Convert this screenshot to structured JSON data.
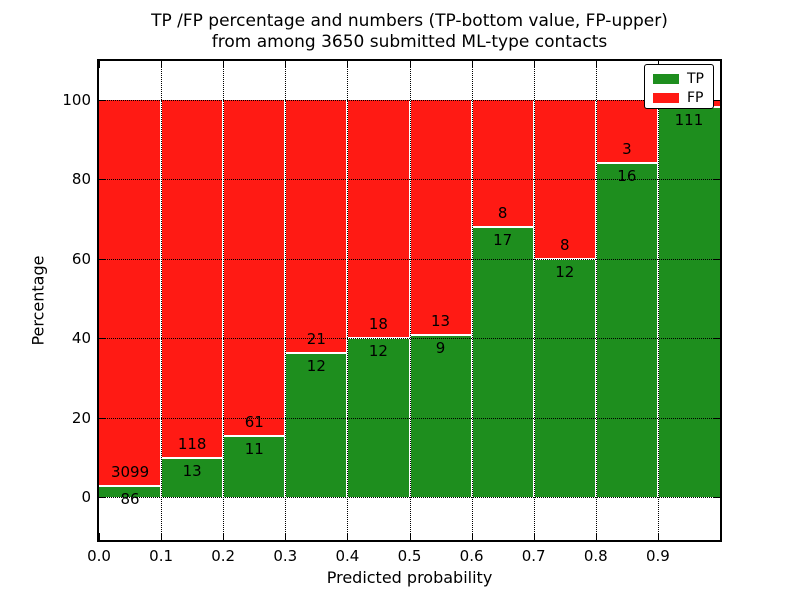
{
  "title": {
    "line1": "TP /FP percentage and numbers (TP-bottom value, FP-upper)",
    "line2": "from among 3650 submitted ML-type contacts"
  },
  "axes": {
    "xlabel": "Predicted probability",
    "ylabel": "Percentage"
  },
  "legend": {
    "entries": [
      {
        "label": "TP",
        "color": "#1e8e1e"
      },
      {
        "label": "FP",
        "color": "#ff1a14"
      }
    ]
  },
  "chart_data": {
    "type": "bar",
    "stacked": true,
    "title": "TP /FP percentage and numbers (TP-bottom value, FP-upper) from among 3650 submitted ML-type contacts",
    "xlabel": "Predicted probability",
    "ylabel": "Percentage",
    "total_submitted": 3650,
    "grid": "dotted-black-over-bars",
    "legend_position": "upper right",
    "xlim": [
      0.0,
      1.0
    ],
    "ylim": [
      -11,
      110
    ],
    "x_tick_labels": [
      "0.0",
      "0.1",
      "0.2",
      "0.3",
      "0.4",
      "0.5",
      "0.6",
      "0.7",
      "0.8",
      "0.9"
    ],
    "y_tick_values": [
      0,
      20,
      40,
      60,
      80,
      100
    ],
    "series": [
      {
        "name": "TP",
        "color": "#1e8e1e"
      },
      {
        "name": "FP",
        "color": "#ff1a14"
      }
    ],
    "bins": [
      {
        "x_range": [
          0.0,
          0.1
        ],
        "tp_count": 86,
        "fp_count": 3099,
        "tp_pct": 2.7
      },
      {
        "x_range": [
          0.1,
          0.2
        ],
        "tp_count": 13,
        "fp_count": 118,
        "tp_pct": 9.92
      },
      {
        "x_range": [
          0.2,
          0.3
        ],
        "tp_count": 11,
        "fp_count": 61,
        "tp_pct": 15.28
      },
      {
        "x_range": [
          0.3,
          0.4
        ],
        "tp_count": 12,
        "fp_count": 21,
        "tp_pct": 36.36
      },
      {
        "x_range": [
          0.4,
          0.5
        ],
        "tp_count": 12,
        "fp_count": 18,
        "tp_pct": 40.0
      },
      {
        "x_range": [
          0.5,
          0.6
        ],
        "tp_count": 9,
        "fp_count": 13,
        "tp_pct": 40.91
      },
      {
        "x_range": [
          0.6,
          0.7
        ],
        "tp_count": 17,
        "fp_count": 8,
        "tp_pct": 68.0
      },
      {
        "x_range": [
          0.7,
          0.8
        ],
        "tp_count": 12,
        "fp_count": 8,
        "tp_pct": 60.0
      },
      {
        "x_range": [
          0.8,
          0.9
        ],
        "tp_count": 16,
        "fp_count": 3,
        "tp_pct": 84.21
      },
      {
        "x_range": [
          0.9,
          1.0
        ],
        "tp_count": 111,
        "fp_count": null,
        "tp_pct": 98.2
      }
    ]
  }
}
